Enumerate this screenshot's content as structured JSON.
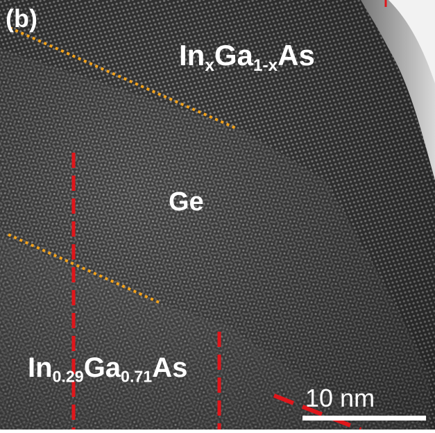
{
  "figure": {
    "panel_label": "(b)",
    "regions": {
      "top": {
        "base": "In",
        "sub1": "x",
        "mid": "Ga",
        "sub2": "1-x",
        "tail": "As"
      },
      "middle": {
        "text": "Ge"
      },
      "bottom": {
        "base": "In",
        "sub1": "0.29",
        "mid": "Ga",
        "sub2": "0.71",
        "tail": "As"
      }
    },
    "scale_bar": {
      "label": "10 nm"
    },
    "colors": {
      "interface_dotted": "#f2a21b",
      "marker_dashed": "#e0161b",
      "label_text": "#ffffff"
    }
  }
}
